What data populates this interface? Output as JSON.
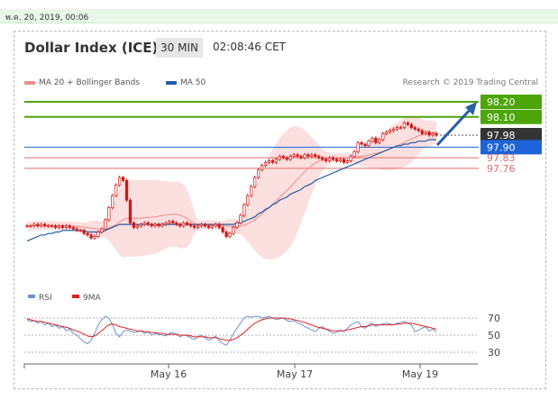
{
  "header": {
    "date_stamp": "พ.ค. 20, 2019, 00:06",
    "title": "Dollar Index (ICE)",
    "timeframe": "30 MIN",
    "time": "02:08:46 CET"
  },
  "legend": {
    "ma20_label": "MA 20 + Bollinger Bands",
    "ma50_label": "MA 50",
    "credit": "Research © 2019 Trading Central"
  },
  "colors": {
    "candle": "#cc1a1a",
    "ma20": "#f08a8a",
    "ma50": "#1f5ca8",
    "bands": "#fbd4d4",
    "resistance": "#4ca60a",
    "support": "#1e64d8",
    "minor": "#e36a6a",
    "last": "#333333",
    "arrow": "#2a5ea8",
    "rsi": "#6f92cf",
    "rsi_ma": "#dd2222"
  },
  "chart_data": [
    {
      "type": "candlestick",
      "title": "Dollar Index (ICE)",
      "x_labels": [
        "May 16",
        "May 17",
        "May 19"
      ],
      "ylim": [
        97.36,
        98.27
      ],
      "series": [
        {
          "name": "MA 20 + Bollinger Bands"
        },
        {
          "name": "MA 50"
        }
      ],
      "levels": [
        {
          "value": 98.2,
          "label": "98.20",
          "kind": "resistance"
        },
        {
          "value": 98.1,
          "label": "98.10",
          "kind": "resistance"
        },
        {
          "value": 97.98,
          "label": "97.98",
          "kind": "last"
        },
        {
          "value": 97.9,
          "label": "97.90",
          "kind": "support"
        },
        {
          "value": 97.83,
          "label": "97.83",
          "kind": "minor"
        },
        {
          "value": 97.76,
          "label": "97.76",
          "kind": "minor"
        }
      ],
      "close": [
        97.38,
        97.38,
        97.39,
        97.38,
        97.39,
        97.38,
        97.38,
        97.38,
        97.37,
        97.38,
        97.37,
        97.38,
        97.37,
        97.36,
        97.35,
        97.35,
        97.33,
        97.32,
        97.3,
        97.31,
        97.34,
        97.36,
        97.42,
        97.5,
        97.58,
        97.65,
        97.7,
        97.68,
        97.55,
        97.4,
        97.37,
        97.38,
        97.39,
        97.4,
        97.39,
        97.38,
        97.39,
        97.38,
        97.39,
        97.4,
        97.41,
        97.4,
        97.39,
        97.38,
        97.4,
        97.39,
        97.38,
        97.37,
        97.38,
        97.39,
        97.38,
        97.37,
        97.38,
        97.39,
        97.37,
        97.34,
        97.31,
        97.33,
        97.37,
        97.4,
        97.45,
        97.52,
        97.58,
        97.64,
        97.7,
        97.75,
        97.78,
        97.8,
        97.81,
        97.8,
        97.82,
        97.84,
        97.83,
        97.82,
        97.84,
        97.85,
        97.84,
        97.83,
        97.85,
        97.84,
        97.85,
        97.84,
        97.83,
        97.82,
        97.81,
        97.83,
        97.82,
        97.81,
        97.82,
        97.8,
        97.81,
        97.84,
        97.87,
        97.93,
        97.92,
        97.91,
        97.94,
        97.96,
        97.93,
        97.95,
        97.99,
        98.0,
        98.01,
        98.02,
        98.03,
        98.03,
        98.06,
        98.05,
        98.03,
        98.02,
        98.01,
        97.99,
        98.0,
        97.98,
        97.99,
        97.98
      ],
      "ma50": [
        97.28,
        97.29,
        97.3,
        97.31,
        97.32,
        97.32,
        97.33,
        97.33,
        97.34,
        97.34,
        97.35,
        97.35,
        97.35,
        97.35,
        97.35,
        97.35,
        97.35,
        97.34,
        97.34,
        97.34,
        97.34,
        97.34,
        97.35,
        97.36,
        97.37,
        97.38,
        97.39,
        97.39,
        97.39,
        97.39,
        97.39,
        97.39,
        97.39,
        97.39,
        97.39,
        97.39,
        97.39,
        97.39,
        97.39,
        97.39,
        97.39,
        97.39,
        97.39,
        97.39,
        97.39,
        97.39,
        97.39,
        97.39,
        97.39,
        97.39,
        97.39,
        97.39,
        97.39,
        97.39,
        97.39,
        97.39,
        97.39,
        97.39,
        97.39,
        97.4,
        97.4,
        97.41,
        97.42,
        97.43,
        97.44,
        97.46,
        97.47,
        97.49,
        97.5,
        97.52,
        97.53,
        97.55,
        97.56,
        97.57,
        97.59,
        97.6,
        97.61,
        97.62,
        97.64,
        97.65,
        97.66,
        97.68,
        97.69,
        97.7,
        97.71,
        97.72,
        97.73,
        97.74,
        97.75,
        97.76,
        97.77,
        97.78,
        97.79,
        97.8,
        97.81,
        97.82,
        97.83,
        97.84,
        97.85,
        97.86,
        97.87,
        97.88,
        97.89,
        97.9,
        97.91,
        97.91,
        97.92,
        97.92,
        97.93,
        97.93,
        97.94,
        97.94,
        97.94,
        97.95,
        97.95,
        97.95
      ]
    },
    {
      "type": "line",
      "series": [
        {
          "name": "RSI"
        },
        {
          "name": "9MA"
        }
      ],
      "ylim": [
        20,
        80
      ],
      "ticks": [
        70,
        50,
        30
      ],
      "rsi": [
        68,
        66,
        67,
        64,
        66,
        62,
        64,
        60,
        62,
        58,
        60,
        55,
        57,
        52,
        50,
        46,
        42,
        40,
        44,
        52,
        62,
        68,
        72,
        70,
        62,
        52,
        48,
        54,
        56,
        55,
        53,
        54,
        55,
        52,
        54,
        50,
        52,
        51,
        50,
        49,
        52,
        53,
        51,
        48,
        50,
        49,
        47,
        45,
        48,
        50,
        47,
        44,
        46,
        49,
        44,
        40,
        38,
        44,
        52,
        58,
        64,
        70,
        72,
        71,
        72,
        72,
        70,
        71,
        72,
        70,
        68,
        69,
        70,
        67,
        66,
        67,
        64,
        63,
        60,
        58,
        56,
        54,
        58,
        60,
        57,
        55,
        52,
        53,
        56,
        54,
        58,
        62,
        64,
        66,
        60,
        58,
        62,
        64,
        60,
        62,
        63,
        64,
        63,
        62,
        64,
        65,
        66,
        64,
        62,
        54,
        56,
        58,
        60,
        55,
        57,
        54
      ],
      "ma9": [
        69,
        68,
        67,
        66,
        66,
        65,
        64,
        63,
        62,
        61,
        60,
        59,
        58,
        56,
        55,
        53,
        51,
        49,
        48,
        49,
        52,
        55,
        59,
        62,
        63,
        62,
        60,
        59,
        58,
        57,
        56,
        55,
        55,
        54,
        54,
        53,
        53,
        52,
        52,
        51,
        51,
        51,
        51,
        50,
        50,
        50,
        49,
        48,
        48,
        48,
        48,
        47,
        47,
        47,
        46,
        45,
        44,
        44,
        45,
        47,
        50,
        53,
        57,
        61,
        64,
        66,
        68,
        69,
        70,
        70,
        70,
        70,
        70,
        69,
        69,
        68,
        67,
        66,
        65,
        63,
        62,
        60,
        59,
        58,
        57,
        56,
        55,
        55,
        55,
        55,
        56,
        57,
        58,
        59,
        60,
        60,
        61,
        62,
        62,
        62,
        62,
        62,
        62,
        62,
        63,
        63,
        64,
        64,
        64,
        63,
        62,
        61,
        60,
        59,
        58,
        57
      ]
    }
  ]
}
